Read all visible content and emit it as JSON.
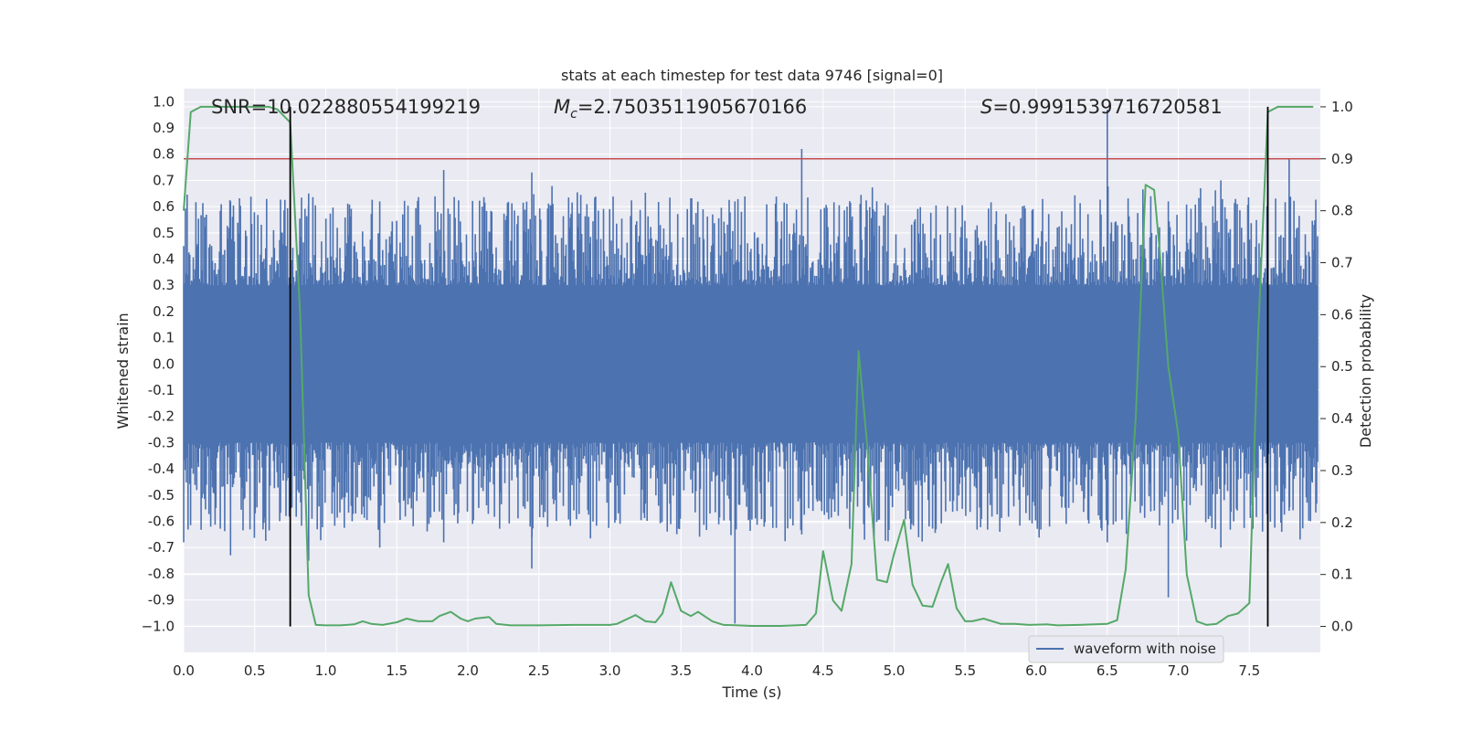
{
  "chart_data": {
    "type": "line",
    "title": "stats at each timestep for test data 9746 [signal=0]",
    "xlabel": "Time (s)",
    "ylabel": "Whitened strain",
    "ylabel_right": "Detection probability",
    "xlim": [
      0.0,
      8.0
    ],
    "ylim": [
      -1.1,
      1.05
    ],
    "ylim_right": [
      -0.05,
      1.035
    ],
    "x_ticks": [
      "0.0",
      "0.5",
      "1.0",
      "1.5",
      "2.0",
      "2.5",
      "3.0",
      "3.5",
      "4.0",
      "4.5",
      "5.0",
      "5.5",
      "6.0",
      "6.5",
      "7.0",
      "7.5"
    ],
    "y_ticks": [
      "1.0",
      "0.9",
      "0.8",
      "0.7",
      "0.6",
      "0.5",
      "0.4",
      "0.3",
      "0.2",
      "0.1",
      "0.0",
      "-0.1",
      "-0.2",
      "-0.3",
      "-0.4",
      "-0.5",
      "-0.6",
      "-0.7",
      "-0.8",
      "-0.9",
      "−1.0"
    ],
    "y_ticks_right": [
      "1.0",
      "0.9",
      "0.8",
      "0.7",
      "0.6",
      "0.5",
      "0.4",
      "0.3",
      "0.2",
      "0.1",
      "0.0"
    ],
    "grid": true,
    "legend_position": "bottom-right",
    "annotations": {
      "snr": "SNR=10.022880554199219",
      "mc_symbol": "M",
      "mc_sub": "c",
      "mc_value": "=2.7503511905670166",
      "s_symbol": "S",
      "s_value": "=0.9991539716720581"
    },
    "threshold": {
      "value": 0.9,
      "axis": "right",
      "color": "#c44e52"
    },
    "vlines": [
      0.75,
      7.63
    ],
    "series": [
      {
        "name": "waveform with noise",
        "axis": "left",
        "color": "#4c72b0",
        "description_mode": "dense noise, amplitude envelope",
        "x": [
          0.0,
          8.0
        ],
        "spikes": [
          {
            "x": 0.0,
            "lo": -0.68,
            "hi": 0.45
          },
          {
            "x": 0.33,
            "lo": -0.73,
            "hi": 0.62
          },
          {
            "x": 0.72,
            "lo": -0.58,
            "hi": 0.45
          },
          {
            "x": 0.88,
            "lo": -0.75,
            "hi": 0.65
          },
          {
            "x": 1.38,
            "lo": -0.7,
            "hi": 0.62
          },
          {
            "x": 1.83,
            "lo": -0.68,
            "hi": 0.74
          },
          {
            "x": 2.45,
            "lo": -0.78,
            "hi": 0.73
          },
          {
            "x": 3.88,
            "lo": -0.99,
            "hi": 0.62
          },
          {
            "x": 4.35,
            "lo": -0.65,
            "hi": 0.82
          },
          {
            "x": 6.5,
            "lo": -0.68,
            "hi": 0.97
          },
          {
            "x": 6.93,
            "lo": -0.89,
            "hi": 0.62
          },
          {
            "x": 7.3,
            "lo": -0.7,
            "hi": 0.7
          },
          {
            "x": 7.63,
            "lo": -0.72,
            "hi": 0.7
          },
          {
            "x": 7.78,
            "lo": -0.56,
            "hi": 0.78
          }
        ]
      },
      {
        "name": "",
        "axis": "right",
        "color": "#55a868",
        "x": [
          0.0,
          0.05,
          0.12,
          0.5,
          0.6,
          0.66,
          0.75,
          0.82,
          0.88,
          0.93,
          1.0,
          1.1,
          1.2,
          1.26,
          1.32,
          1.4,
          1.5,
          1.57,
          1.65,
          1.75,
          1.8,
          1.88,
          1.95,
          2.0,
          2.05,
          2.15,
          2.2,
          2.3,
          2.5,
          2.75,
          3.0,
          3.05,
          3.18,
          3.25,
          3.32,
          3.37,
          3.43,
          3.5,
          3.57,
          3.62,
          3.72,
          3.8,
          3.9,
          4.0,
          4.2,
          4.38,
          4.45,
          4.5,
          4.57,
          4.63,
          4.7,
          4.75,
          4.81,
          4.88,
          4.95,
          5.0,
          5.07,
          5.13,
          5.2,
          5.27,
          5.33,
          5.38,
          5.44,
          5.5,
          5.55,
          5.63,
          5.75,
          5.85,
          5.95,
          6.07,
          6.15,
          6.3,
          6.5,
          6.57,
          6.63,
          6.7,
          6.77,
          6.83,
          6.87,
          6.93,
          7.0,
          7.06,
          7.13,
          7.2,
          7.27,
          7.35,
          7.42,
          7.5,
          7.56,
          7.63,
          7.7,
          7.75,
          7.85,
          7.95
        ],
        "values": [
          0.8,
          0.99,
          1.0,
          1.0,
          1.0,
          0.995,
          0.97,
          0.6,
          0.06,
          0.003,
          0.002,
          0.002,
          0.004,
          0.01,
          0.005,
          0.003,
          0.008,
          0.015,
          0.01,
          0.01,
          0.02,
          0.028,
          0.015,
          0.01,
          0.015,
          0.018,
          0.005,
          0.002,
          0.002,
          0.003,
          0.003,
          0.005,
          0.022,
          0.01,
          0.008,
          0.025,
          0.085,
          0.03,
          0.02,
          0.028,
          0.01,
          0.003,
          0.002,
          0.001,
          0.001,
          0.003,
          0.025,
          0.145,
          0.05,
          0.03,
          0.12,
          0.53,
          0.35,
          0.09,
          0.085,
          0.14,
          0.205,
          0.08,
          0.04,
          0.038,
          0.085,
          0.12,
          0.035,
          0.01,
          0.01,
          0.015,
          0.005,
          0.005,
          0.003,
          0.004,
          0.002,
          0.003,
          0.005,
          0.012,
          0.11,
          0.4,
          0.85,
          0.84,
          0.72,
          0.5,
          0.37,
          0.1,
          0.01,
          0.003,
          0.005,
          0.02,
          0.025,
          0.045,
          0.55,
          0.99,
          1.0,
          1.0,
          1.0,
          1.0
        ]
      }
    ]
  }
}
